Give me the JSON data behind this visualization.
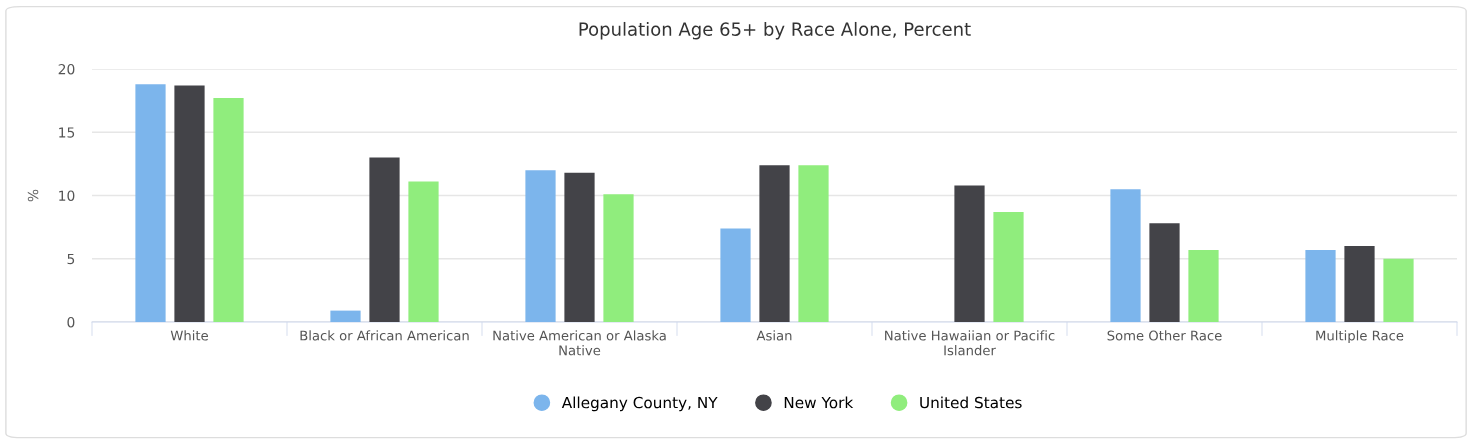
{
  "chart_data": {
    "type": "bar",
    "title": "Population Age 65+ by Race Alone, Percent",
    "ylabel": "%",
    "categories": [
      "White",
      "Black or African American",
      "Native American or Alaska Native",
      "Asian",
      "Native Hawaiian or Pacific Islander",
      "Some Other Race",
      "Multiple Race"
    ],
    "series": [
      {
        "name": "Allegany County, NY",
        "color": "#7cb5ec",
        "values": [
          18.8,
          0.9,
          12.0,
          7.4,
          null,
          10.5,
          5.7
        ]
      },
      {
        "name": "New York",
        "color": "#434348",
        "values": [
          18.7,
          13.0,
          11.8,
          12.4,
          10.8,
          7.8,
          6.0
        ]
      },
      {
        "name": "United States",
        "color": "#90ed7d",
        "values": [
          17.7,
          11.1,
          10.1,
          12.4,
          8.7,
          5.7,
          5.0
        ]
      }
    ],
    "ylim": [
      0,
      20
    ],
    "yticks": [
      0,
      5,
      10,
      15,
      20
    ],
    "grid": "y",
    "legend": "bottom"
  }
}
